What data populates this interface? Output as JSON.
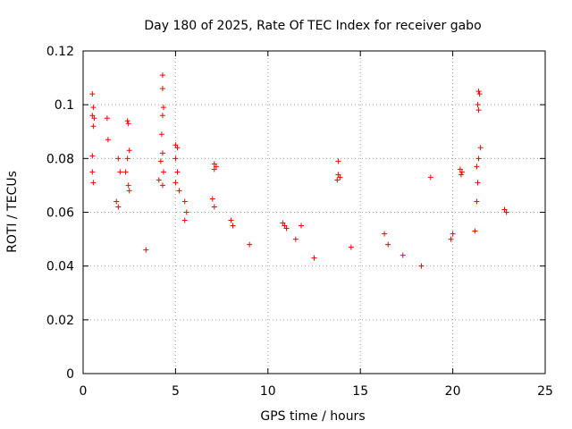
{
  "chart_data": {
    "type": "scatter",
    "title": "Day 180 of 2025, Rate Of TEC Index for receiver gabo",
    "xlabel": "GPS time / hours",
    "ylabel": "ROTI / TECUs",
    "xlim": [
      0,
      25
    ],
    "ylim": [
      0,
      0.12
    ],
    "xticks": [
      0,
      5,
      10,
      15,
      20,
      25
    ],
    "yticks": [
      0,
      0.02,
      0.04,
      0.06,
      0.08,
      0.1,
      0.12
    ],
    "xtick_labels": [
      "0",
      "5",
      "10",
      "15",
      "20",
      "25"
    ],
    "ytick_labels": [
      "0",
      "0.02",
      "0.04",
      "0.06",
      "0.08",
      "0.1",
      "0.12"
    ],
    "grid": true,
    "marker": "+",
    "color": "#ff0000",
    "series": [
      {
        "name": "ROTI",
        "points": [
          [
            0.5,
            0.104
          ],
          [
            0.55,
            0.099
          ],
          [
            0.5,
            0.096
          ],
          [
            0.6,
            0.095
          ],
          [
            0.55,
            0.092
          ],
          [
            0.5,
            0.081
          ],
          [
            0.5,
            0.075
          ],
          [
            0.55,
            0.071
          ],
          [
            1.3,
            0.095
          ],
          [
            1.35,
            0.087
          ],
          [
            2.4,
            0.094
          ],
          [
            2.45,
            0.093
          ],
          [
            2.5,
            0.083
          ],
          [
            2.4,
            0.08
          ],
          [
            2.3,
            0.075
          ],
          [
            2.45,
            0.07
          ],
          [
            2.5,
            0.068
          ],
          [
            1.9,
            0.08
          ],
          [
            2.0,
            0.075
          ],
          [
            1.8,
            0.064
          ],
          [
            1.9,
            0.062
          ],
          [
            4.3,
            0.111
          ],
          [
            4.3,
            0.106
          ],
          [
            4.35,
            0.099
          ],
          [
            4.3,
            0.096
          ],
          [
            4.25,
            0.089
          ],
          [
            4.3,
            0.082
          ],
          [
            4.2,
            0.079
          ],
          [
            4.35,
            0.075
          ],
          [
            4.1,
            0.072
          ],
          [
            4.3,
            0.07
          ],
          [
            5.0,
            0.085
          ],
          [
            5.1,
            0.084
          ],
          [
            5.0,
            0.08
          ],
          [
            5.1,
            0.075
          ],
          [
            5.0,
            0.071
          ],
          [
            5.2,
            0.068
          ],
          [
            5.5,
            0.064
          ],
          [
            5.6,
            0.06
          ],
          [
            5.5,
            0.057
          ],
          [
            7.1,
            0.078
          ],
          [
            7.2,
            0.077
          ],
          [
            7.1,
            0.076
          ],
          [
            7.0,
            0.065
          ],
          [
            7.1,
            0.062
          ],
          [
            8.0,
            0.057
          ],
          [
            8.1,
            0.055
          ],
          [
            10.8,
            0.056
          ],
          [
            10.9,
            0.055
          ],
          [
            11.0,
            0.054
          ],
          [
            11.5,
            0.05
          ],
          [
            11.8,
            0.055
          ],
          [
            13.8,
            0.079
          ],
          [
            13.8,
            0.074
          ],
          [
            13.9,
            0.073
          ],
          [
            13.75,
            0.072
          ],
          [
            16.3,
            0.052
          ],
          [
            16.5,
            0.048
          ],
          [
            18.8,
            0.073
          ],
          [
            20.4,
            0.076
          ],
          [
            20.5,
            0.075
          ],
          [
            20.45,
            0.074
          ],
          [
            21.4,
            0.105
          ],
          [
            21.45,
            0.104
          ],
          [
            21.35,
            0.1
          ],
          [
            21.4,
            0.098
          ],
          [
            21.5,
            0.084
          ],
          [
            21.4,
            0.08
          ],
          [
            21.3,
            0.077
          ],
          [
            21.35,
            0.071
          ],
          [
            21.3,
            0.064
          ],
          [
            22.8,
            0.061
          ],
          [
            22.9,
            0.06
          ],
          [
            20.0,
            0.052
          ],
          [
            19.9,
            0.05
          ],
          [
            21.2,
            0.053
          ],
          [
            3.4,
            0.046
          ],
          [
            9.0,
            0.048
          ],
          [
            12.5,
            0.043
          ],
          [
            14.5,
            0.047
          ],
          [
            17.3,
            0.044
          ],
          [
            18.3,
            0.04
          ]
        ]
      }
    ]
  }
}
